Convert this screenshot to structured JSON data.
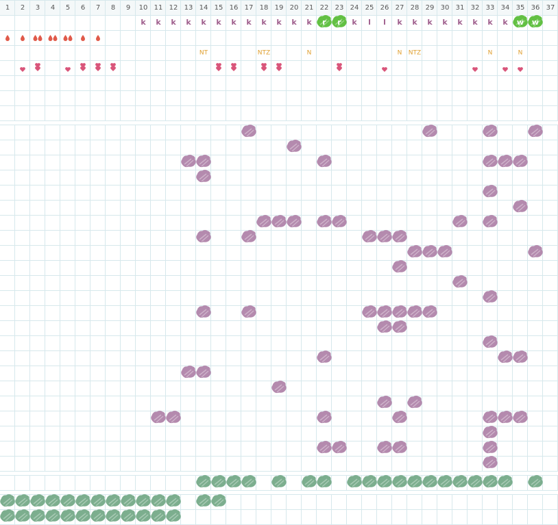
{
  "header": {
    "columns": [
      1,
      2,
      3,
      4,
      5,
      6,
      7,
      8,
      9,
      10,
      11,
      12,
      13,
      14,
      15,
      16,
      17,
      18,
      19,
      20,
      21,
      22,
      23,
      24,
      25,
      26,
      27,
      28,
      29,
      30,
      31,
      32,
      33,
      34,
      35,
      36,
      37
    ]
  },
  "letters": [
    {
      "col": 10,
      "text": "k"
    },
    {
      "col": 11,
      "text": "k"
    },
    {
      "col": 12,
      "text": "k"
    },
    {
      "col": 13,
      "text": "k"
    },
    {
      "col": 14,
      "text": "k"
    },
    {
      "col": 15,
      "text": "k"
    },
    {
      "col": 16,
      "text": "k"
    },
    {
      "col": 17,
      "text": "k"
    },
    {
      "col": 18,
      "text": "k"
    },
    {
      "col": 19,
      "text": "k"
    },
    {
      "col": 20,
      "text": "k"
    },
    {
      "col": 21,
      "text": "k"
    },
    {
      "col": 22,
      "text": "r",
      "highlight": true
    },
    {
      "col": 23,
      "text": "r",
      "highlight": true
    },
    {
      "col": 24,
      "text": "k"
    },
    {
      "col": 25,
      "text": "l"
    },
    {
      "col": 26,
      "text": "l"
    },
    {
      "col": 27,
      "text": "k"
    },
    {
      "col": 28,
      "text": "k"
    },
    {
      "col": 29,
      "text": "k"
    },
    {
      "col": 30,
      "text": "k"
    },
    {
      "col": 31,
      "text": "k"
    },
    {
      "col": 32,
      "text": "k"
    },
    {
      "col": 33,
      "text": "k"
    },
    {
      "col": 34,
      "text": "k"
    },
    {
      "col": 35,
      "text": "w",
      "highlight": true
    },
    {
      "col": 36,
      "text": "w",
      "highlight": true
    }
  ],
  "drops": [
    {
      "col": 1,
      "count": 1
    },
    {
      "col": 2,
      "count": 1
    },
    {
      "col": 3,
      "count": 2
    },
    {
      "col": 4,
      "count": 2
    },
    {
      "col": 5,
      "count": 2
    },
    {
      "col": 6,
      "count": 1
    },
    {
      "col": 7,
      "count": 1
    }
  ],
  "notes": [
    {
      "col": 14,
      "text": "NT"
    },
    {
      "col": 18,
      "text": "NTZ"
    },
    {
      "col": 21,
      "text": "N"
    },
    {
      "col": 27,
      "text": "N"
    },
    {
      "col": 28,
      "text": "NTZ"
    },
    {
      "col": 33,
      "text": "N"
    },
    {
      "col": 35,
      "text": "N"
    }
  ],
  "hearts": [
    {
      "col": 2,
      "count": 1
    },
    {
      "col": 3,
      "count": 2
    },
    {
      "col": 5,
      "count": 1
    },
    {
      "col": 6,
      "count": 2
    },
    {
      "col": 7,
      "count": 2
    },
    {
      "col": 8,
      "count": 2
    },
    {
      "col": 15,
      "count": 2
    },
    {
      "col": 16,
      "count": 2
    },
    {
      "col": 18,
      "count": 2
    },
    {
      "col": 19,
      "count": 2
    },
    {
      "col": 23,
      "count": 2
    },
    {
      "col": 26,
      "count": 1
    },
    {
      "col": 32,
      "count": 1
    },
    {
      "col": 34,
      "count": 1
    },
    {
      "col": 35,
      "count": 1
    }
  ],
  "purple_rows": [
    [
      17,
      29,
      33,
      36
    ],
    [
      20
    ],
    [
      13,
      14,
      22,
      33,
      34,
      35
    ],
    [
      14
    ],
    [
      33
    ],
    [
      35
    ],
    [
      18,
      19,
      20,
      22,
      23,
      31,
      33
    ],
    [
      14,
      17,
      25,
      26,
      27
    ],
    [
      28,
      29,
      30,
      36
    ],
    [
      27
    ],
    [
      31
    ],
    [
      33
    ],
    [
      14,
      17,
      25,
      26,
      27,
      28,
      29
    ],
    [
      26,
      27
    ],
    [
      33
    ],
    [
      22,
      34,
      35
    ],
    [
      13,
      14
    ],
    [
      19
    ],
    [
      26,
      28
    ],
    [
      11,
      12,
      22,
      27,
      33,
      34,
      35
    ],
    [
      33
    ],
    [
      22,
      23,
      26,
      27,
      33
    ],
    [
      33
    ]
  ],
  "green_rows": [
    [
      14,
      15,
      16,
      17,
      19,
      21,
      22,
      24,
      25,
      26,
      27,
      28,
      29,
      30,
      31,
      32,
      33,
      34,
      36
    ]
  ],
  "bottom_rows": [
    [
      1,
      2,
      3,
      4,
      5,
      6,
      7,
      8,
      9,
      10,
      11,
      12,
      14,
      15
    ],
    [
      1,
      2,
      3,
      4,
      5,
      6,
      7,
      8,
      9,
      10,
      11,
      12
    ]
  ]
}
